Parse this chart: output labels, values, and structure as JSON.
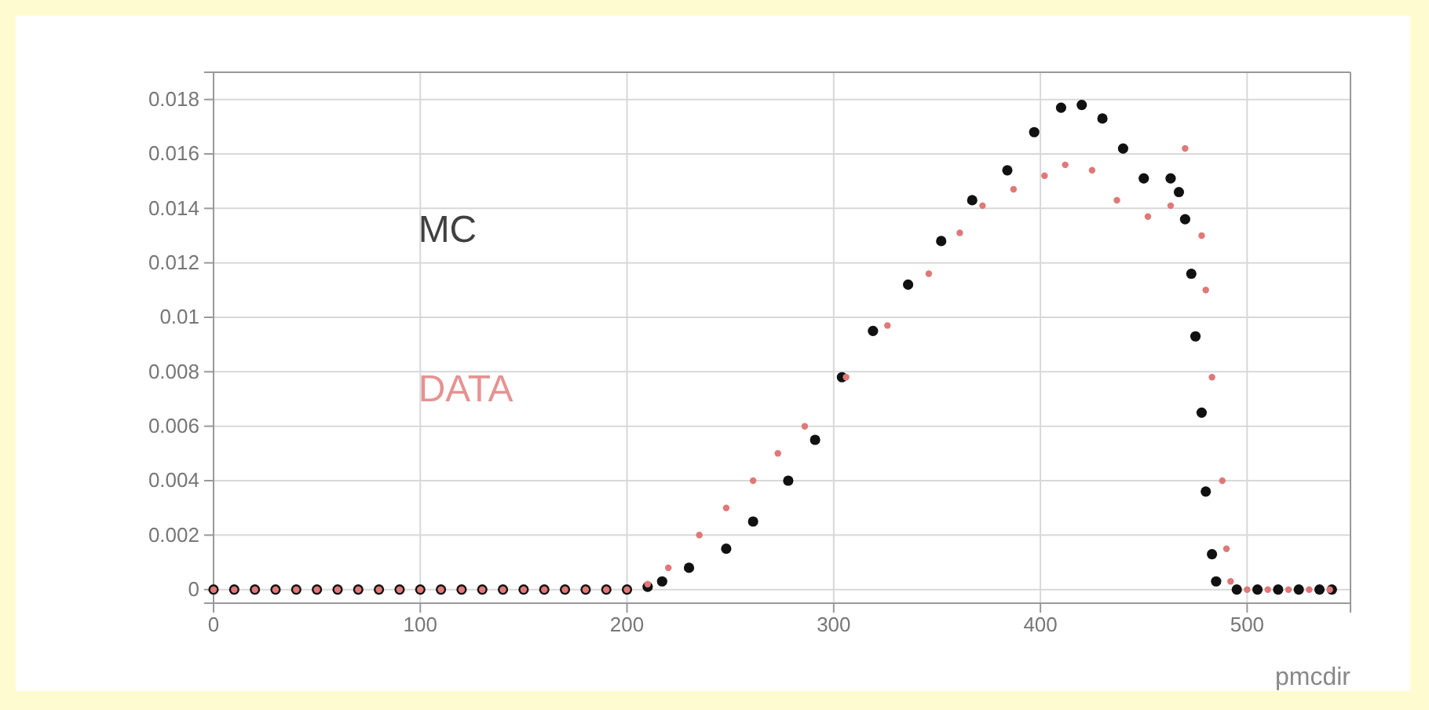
{
  "chart_data": {
    "type": "scatter",
    "xlabel": "pmcdir",
    "xlim": [
      0,
      550
    ],
    "ylim": [
      -0.0005,
      0.019
    ],
    "xticks": [
      0,
      100,
      200,
      300,
      400,
      500
    ],
    "yticks": [
      0,
      0.002,
      0.004,
      0.006,
      0.008,
      0.01,
      0.012,
      0.014,
      0.016,
      0.018
    ],
    "grid": true,
    "marker": "circle",
    "series": [
      {
        "name": "MC",
        "color": "#111111",
        "x": [
          0,
          10,
          20,
          30,
          40,
          50,
          60,
          70,
          80,
          90,
          100,
          110,
          120,
          130,
          140,
          150,
          160,
          170,
          180,
          190,
          200,
          210,
          217,
          230,
          248,
          261,
          278,
          291,
          304,
          319,
          336,
          352,
          367,
          384,
          397,
          410,
          420,
          430,
          440,
          450,
          463,
          467,
          470,
          473,
          475,
          478,
          480,
          483,
          485,
          495,
          505,
          515,
          525,
          535,
          541
        ],
        "values": [
          0,
          0,
          0,
          0,
          0,
          0,
          0,
          0,
          0,
          0,
          0,
          0,
          0,
          0,
          0,
          0,
          0,
          0,
          0,
          0,
          0,
          0.0001,
          0.0003,
          0.0008,
          0.0015,
          0.0025,
          0.004,
          0.0055,
          0.0078,
          0.0095,
          0.0112,
          0.0128,
          0.0143,
          0.0154,
          0.0168,
          0.0177,
          0.0178,
          0.0173,
          0.0162,
          0.0151,
          0.0151,
          0.0146,
          0.0136,
          0.0116,
          0.0093,
          0.0065,
          0.0036,
          0.0013,
          0.0003,
          0,
          0,
          0,
          0,
          0,
          0
        ]
      },
      {
        "name": "DATA",
        "color": "#e07878",
        "x": [
          0,
          10,
          20,
          30,
          40,
          50,
          60,
          70,
          80,
          90,
          100,
          110,
          120,
          130,
          140,
          150,
          160,
          170,
          180,
          190,
          200,
          210,
          220,
          235,
          248,
          261,
          273,
          286,
          306,
          326,
          346,
          361,
          372,
          387,
          402,
          412,
          425,
          437,
          452,
          463,
          470,
          478,
          480,
          483,
          488,
          490,
          492,
          500,
          510,
          520,
          530,
          540
        ],
        "values": [
          0,
          0,
          0,
          0,
          0,
          0,
          0,
          0,
          0,
          0,
          0,
          0,
          0,
          0,
          0,
          0,
          0,
          0,
          0,
          0,
          0,
          0.0002,
          0.0008,
          0.002,
          0.003,
          0.004,
          0.005,
          0.006,
          0.0078,
          0.0097,
          0.0116,
          0.0131,
          0.0141,
          0.0147,
          0.0152,
          0.0156,
          0.0154,
          0.0143,
          0.0137,
          0.0141,
          0.0162,
          0.013,
          0.011,
          0.0078,
          0.004,
          0.0015,
          0.0003,
          0,
          0,
          0,
          0,
          0
        ]
      }
    ]
  }
}
